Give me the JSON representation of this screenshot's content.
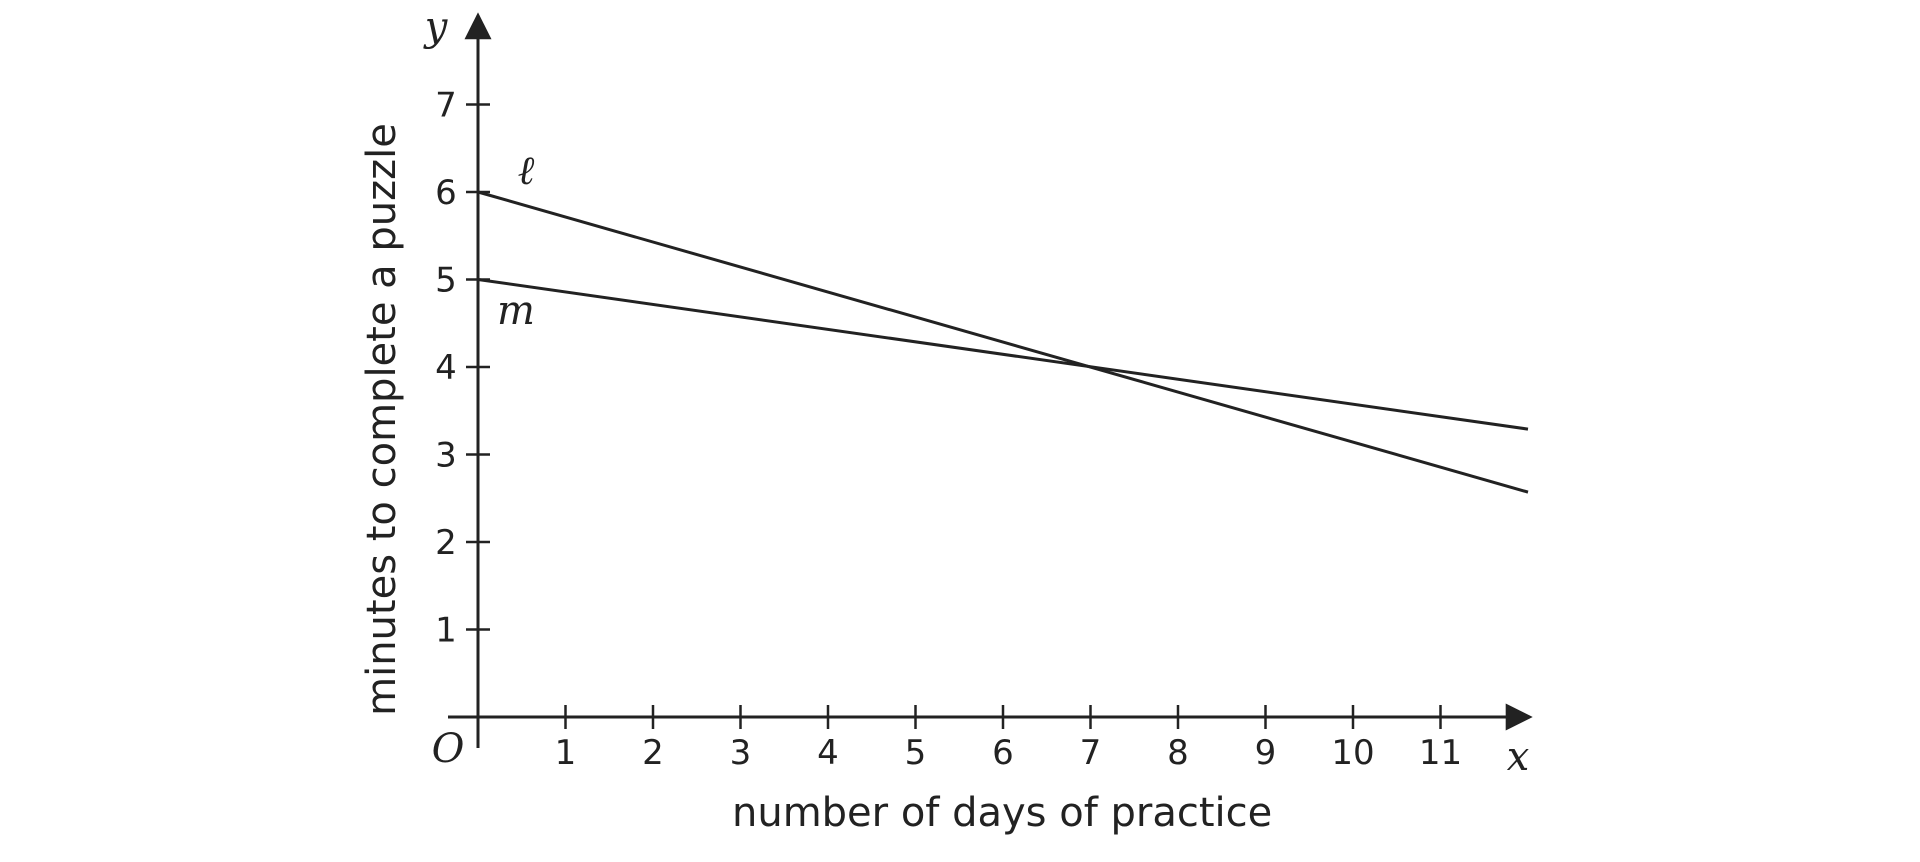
{
  "chart_data": {
    "type": "line",
    "xlabel": "number of days of practice",
    "ylabel": "minutes to complete a puzzle",
    "x_axis_letter": "x",
    "y_axis_letter": "y",
    "origin_label": "O",
    "xlim": [
      0,
      12
    ],
    "ylim": [
      0,
      8
    ],
    "x_ticks": [
      1,
      2,
      3,
      4,
      5,
      6,
      7,
      8,
      9,
      10,
      11
    ],
    "y_ticks": [
      1,
      2,
      3,
      4,
      5,
      6,
      7
    ],
    "x_tick_labels": [
      "1",
      "2",
      "3",
      "4",
      "5",
      "6",
      "7",
      "8",
      "9",
      "10",
      "11"
    ],
    "y_tick_labels": [
      "1",
      "2",
      "3",
      "4",
      "5",
      "6",
      "7"
    ],
    "grid": false,
    "series": [
      {
        "name": "ℓ",
        "x": [
          0,
          12
        ],
        "y": [
          6,
          2.57
        ]
      },
      {
        "name": "m",
        "x": [
          0,
          12
        ],
        "y": [
          5,
          3.29
        ]
      }
    ]
  }
}
